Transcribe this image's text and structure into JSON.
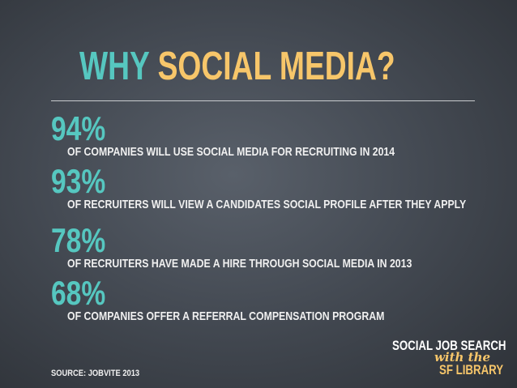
{
  "title": {
    "word1": "WHY",
    "word2": "SOCIAL MEDIA?"
  },
  "stats": [
    {
      "percent": "94%",
      "text": "OF COMPANIES WILL USE SOCIAL MEDIA FOR RECRUITING IN 2014"
    },
    {
      "percent": "93%",
      "text": "OF RECRUITERS WILL VIEW A CANDIDATES SOCIAL PROFILE AFTER THEY APPLY"
    },
    {
      "percent": "78%",
      "text": "OF RECRUITERS HAVE MADE A HIRE THROUGH SOCIAL MEDIA IN 2013"
    },
    {
      "percent": "68%",
      "text": "OF COMPANIES OFFER A REFERRAL COMPENSATION PROGRAM"
    }
  ],
  "source": "SOURCE: JOBVITE 2013",
  "brand": {
    "line1": "SOCIAL JOB SEARCH",
    "line2": "with the",
    "line3": "SF LIBRARY"
  },
  "colors": {
    "accent_teal": "#56c7c0",
    "accent_gold": "#f7c66a",
    "background": "#454b54"
  }
}
